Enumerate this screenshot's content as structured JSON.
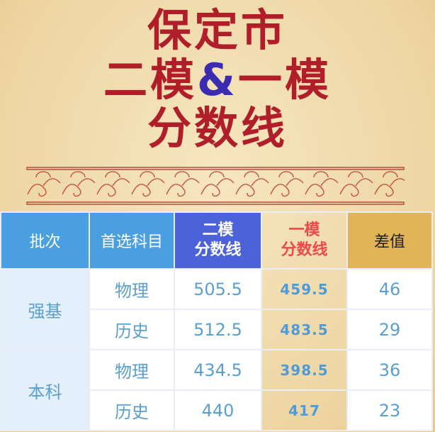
{
  "title": {
    "line1": "保定市",
    "line2_a": "二模",
    "line2_amp": "&",
    "line2_b": "一模",
    "line3": "分数线"
  },
  "colors": {
    "title_red": "#b01e2a",
    "ampersand": "#3b2bb0",
    "header_blue": "#4a9fe0",
    "header_indigo": "#4b62d8",
    "header_gold": "#e0b457",
    "value_blue": "#5b9fd0"
  },
  "table": {
    "headers": {
      "batch": "批次",
      "subject": "首选科目",
      "ermo_1": "二模",
      "ermo_2": "分数线",
      "yimo_1": "一模",
      "yimo_2": "分数线",
      "diff": "差值"
    },
    "groups": [
      {
        "name": "强基",
        "rows": [
          {
            "subject": "物理",
            "ermo": "505.5",
            "yimo": "459.5",
            "diff": "46"
          },
          {
            "subject": "历史",
            "ermo": "512.5",
            "yimo": "483.5",
            "diff": "29"
          }
        ]
      },
      {
        "name": "本科",
        "rows": [
          {
            "subject": "物理",
            "ermo": "434.5",
            "yimo": "398.5",
            "diff": "36"
          },
          {
            "subject": "历史",
            "ermo": "440",
            "yimo": "417",
            "diff": "23"
          }
        ]
      }
    ]
  }
}
